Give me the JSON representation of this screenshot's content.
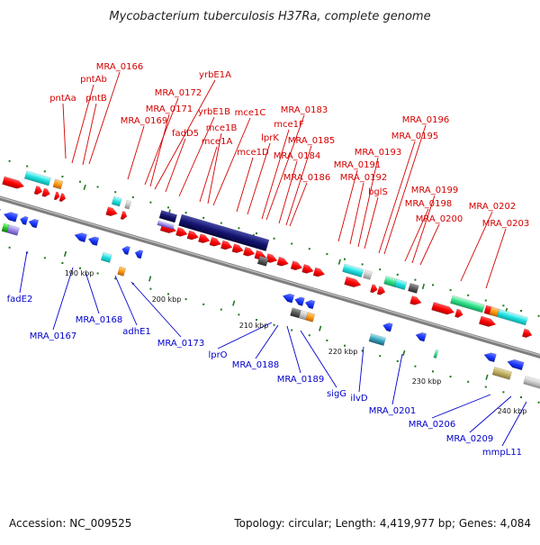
{
  "title": "Mycobacterium tuberculosis H37Ra, complete genome",
  "footer": {
    "accession": "Accession: NC_009525",
    "summary": "Topology: circular; Length: 4,419,977 bp; Genes: 4,084"
  },
  "colors": {
    "top_labels": "#d40000",
    "bottom_labels": "#0000cc",
    "backbone": "#8a8a8a",
    "forward_cds": "#ff0000",
    "reverse_cds": "#1f3bff",
    "tick": "#1e7a1e"
  },
  "ticks": [
    {
      "name": "tick-190kbp",
      "label": "190 kbp"
    },
    {
      "name": "tick-200kbp",
      "label": "200 kbp"
    },
    {
      "name": "tick-210kbp",
      "label": "210 kbp"
    },
    {
      "name": "tick-220kbp",
      "label": "220 kbp"
    },
    {
      "name": "tick-230kbp",
      "label": "230 kbp"
    },
    {
      "name": "tick-240kbp",
      "label": "240 kbp"
    }
  ],
  "top_genes": [
    "pntAa",
    "pntAb",
    "pntB",
    "MRA_0166",
    "MRA_0169",
    "MRA_0172",
    "MRA_0171",
    "yrbE1A",
    "fadD5",
    "yrbE1B",
    "mce1A",
    "mce1B",
    "mce1C",
    "mce1D",
    "lprK",
    "mce1F",
    "MRA_0183",
    "MRA_0184",
    "MRA_0185",
    "MRA_0186",
    "MRA_0191",
    "MRA_0192",
    "MRA_0193",
    "bglS",
    "MRA_0195",
    "MRA_0196",
    "MRA_0198",
    "MRA_0199",
    "MRA_0200",
    "MRA_0202",
    "MRA_0203"
  ],
  "bottom_genes": [
    "fadE2",
    "MRA_0167",
    "MRA_0168",
    "adhE1",
    "MRA_0173",
    "lprO",
    "MRA_0188",
    "MRA_0189",
    "sigG",
    "ilvD",
    "MRA_0201",
    "MRA_0206",
    "MRA_0209",
    "mmpL11"
  ]
}
